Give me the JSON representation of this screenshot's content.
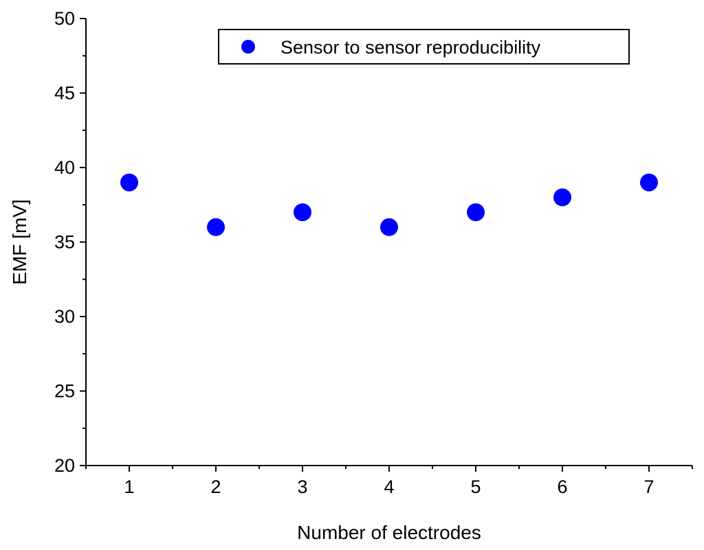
{
  "chart_data": {
    "type": "scatter",
    "title": "",
    "xlabel": "Number of electrodes",
    "ylabel": "EMF [mV]",
    "xlim": [
      0.5,
      7.5
    ],
    "ylim": [
      20,
      50
    ],
    "x_ticks": [
      1,
      2,
      3,
      4,
      5,
      6,
      7
    ],
    "y_ticks": [
      20,
      25,
      30,
      35,
      40,
      45,
      50
    ],
    "grid": false,
    "legend_position": "top-right",
    "series": [
      {
        "name": "Sensor to sensor reproducibility",
        "color": "#0000ff",
        "marker": "circle",
        "x": [
          1,
          2,
          3,
          4,
          5,
          6,
          7
        ],
        "y": [
          39,
          36,
          37,
          36,
          37,
          38,
          39
        ]
      }
    ]
  }
}
